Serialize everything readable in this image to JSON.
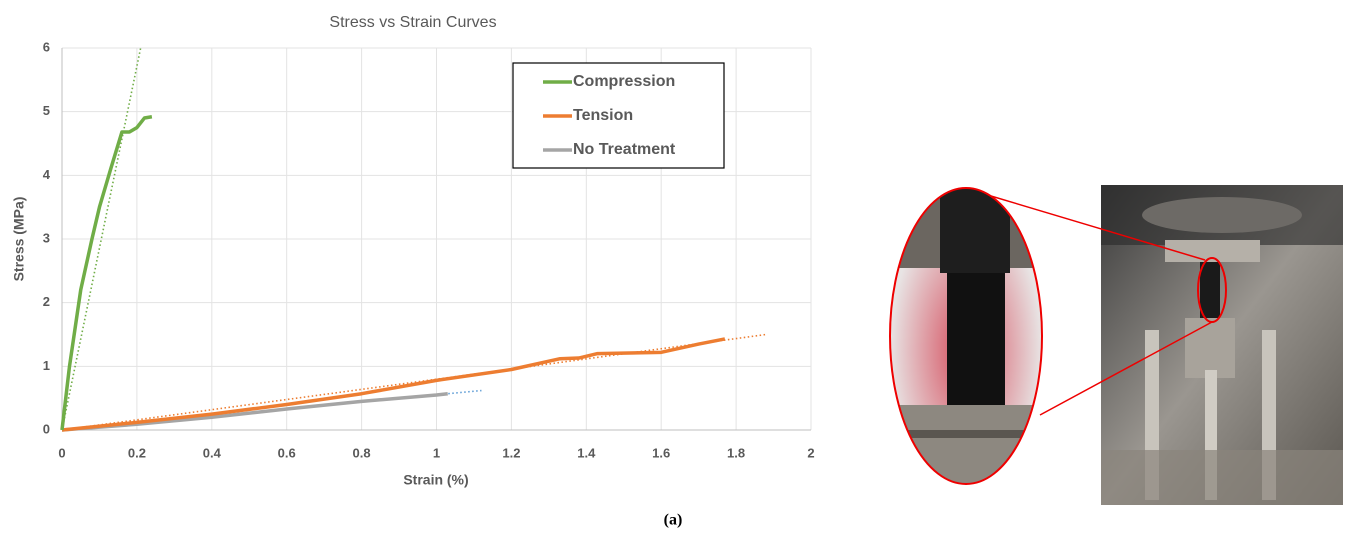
{
  "chart_data": {
    "type": "line",
    "title": "Stress vs Strain Curves",
    "x_label": "Strain (%)",
    "y_label": "Stress (MPa)",
    "xlim": [
      0,
      2
    ],
    "xticks": [
      0,
      0.2,
      0.4,
      0.6,
      0.8,
      1,
      1.2,
      1.4,
      1.6,
      1.8,
      2
    ],
    "ylim": [
      0,
      6
    ],
    "yticks": [
      0,
      1,
      2,
      3,
      4,
      5,
      6
    ],
    "grid": true,
    "legend": "top-right",
    "series": [
      {
        "name": "Compression",
        "color": "#70ad47",
        "x": [
          0,
          0.02,
          0.05,
          0.08,
          0.1,
          0.13,
          0.16,
          0.18,
          0.2,
          0.22,
          0.24
        ],
        "values": [
          0,
          1,
          2.2,
          3.0,
          3.5,
          4.1,
          4.68,
          4.68,
          4.75,
          4.9,
          4.92
        ],
        "trendline": {
          "color": "#70ad47",
          "x": [
            0,
            0.21
          ],
          "values": [
            0,
            6
          ]
        }
      },
      {
        "name": "Tension",
        "color": "#ed7d31",
        "x": [
          0,
          0.2,
          0.4,
          0.6,
          0.8,
          1.0,
          1.2,
          1.33,
          1.38,
          1.43,
          1.6,
          1.7,
          1.77
        ],
        "values": [
          0,
          0.12,
          0.25,
          0.4,
          0.57,
          0.78,
          0.95,
          1.12,
          1.13,
          1.2,
          1.22,
          1.35,
          1.43
        ],
        "trendline": {
          "color": "#ed7d31",
          "x": [
            0,
            1.88
          ],
          "values": [
            0,
            1.5
          ]
        }
      },
      {
        "name": "No Treatment",
        "color": "#a5a5a5",
        "x": [
          0,
          0.2,
          0.4,
          0.6,
          0.8,
          1.0,
          1.03
        ],
        "values": [
          0,
          0.09,
          0.2,
          0.33,
          0.45,
          0.55,
          0.57
        ],
        "trendline": {
          "color": "#5b9bd5",
          "x": [
            0,
            1.12
          ],
          "values": [
            0,
            0.62
          ]
        }
      }
    ]
  },
  "caption": "(a)"
}
